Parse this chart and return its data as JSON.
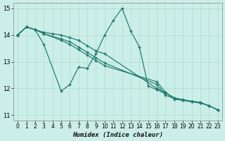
{
  "bg_color": "#cceee8",
  "line_color": "#1a7a6e",
  "grid_color": "#aaddcc",
  "xlabel": "Humidex (Indice chaleur)",
  "xlim": [
    -0.5,
    23.5
  ],
  "ylim": [
    10.8,
    15.2
  ],
  "yticks": [
    11,
    12,
    13,
    14,
    15
  ],
  "xticks": [
    0,
    1,
    2,
    3,
    4,
    5,
    6,
    7,
    8,
    9,
    10,
    11,
    12,
    13,
    14,
    15,
    16,
    17,
    18,
    19,
    20,
    21,
    22,
    23
  ],
  "line1_x": [
    0,
    1,
    2,
    3,
    5,
    6,
    7,
    8,
    9,
    10,
    11,
    12,
    13,
    14,
    15,
    16,
    17
  ],
  "line1_y": [
    14.0,
    14.3,
    14.2,
    13.65,
    11.9,
    12.15,
    12.8,
    12.75,
    13.3,
    14.0,
    14.55,
    15.0,
    14.15,
    13.55,
    12.1,
    11.95,
    11.8
  ],
  "line2_x": [
    0,
    1,
    2,
    3,
    4,
    5,
    6,
    7,
    8,
    9,
    10,
    16,
    17,
    18,
    19,
    20,
    21,
    22,
    23
  ],
  "line2_y": [
    14.0,
    14.3,
    14.2,
    14.1,
    14.05,
    14.0,
    13.9,
    13.8,
    13.6,
    13.4,
    13.3,
    12.0,
    11.85,
    11.6,
    11.55,
    11.5,
    11.45,
    11.35,
    11.2
  ],
  "line3_x": [
    0,
    1,
    2,
    3,
    5,
    6,
    7,
    8,
    9,
    10,
    16,
    17,
    18,
    19,
    20,
    21,
    22,
    23
  ],
  "line3_y": [
    14.0,
    14.3,
    14.2,
    14.05,
    13.85,
    13.75,
    13.55,
    13.35,
    13.15,
    12.95,
    12.15,
    11.75,
    11.62,
    11.57,
    11.52,
    11.47,
    11.35,
    11.2
  ],
  "line4_x": [
    0,
    1,
    2,
    3,
    5,
    6,
    7,
    8,
    9,
    10,
    16,
    17,
    18,
    19,
    20,
    21,
    22,
    23
  ],
  "line4_y": [
    14.0,
    14.3,
    14.2,
    14.05,
    13.8,
    13.65,
    13.45,
    13.25,
    13.05,
    12.85,
    12.25,
    11.85,
    11.65,
    11.58,
    11.52,
    11.48,
    11.35,
    11.2
  ]
}
